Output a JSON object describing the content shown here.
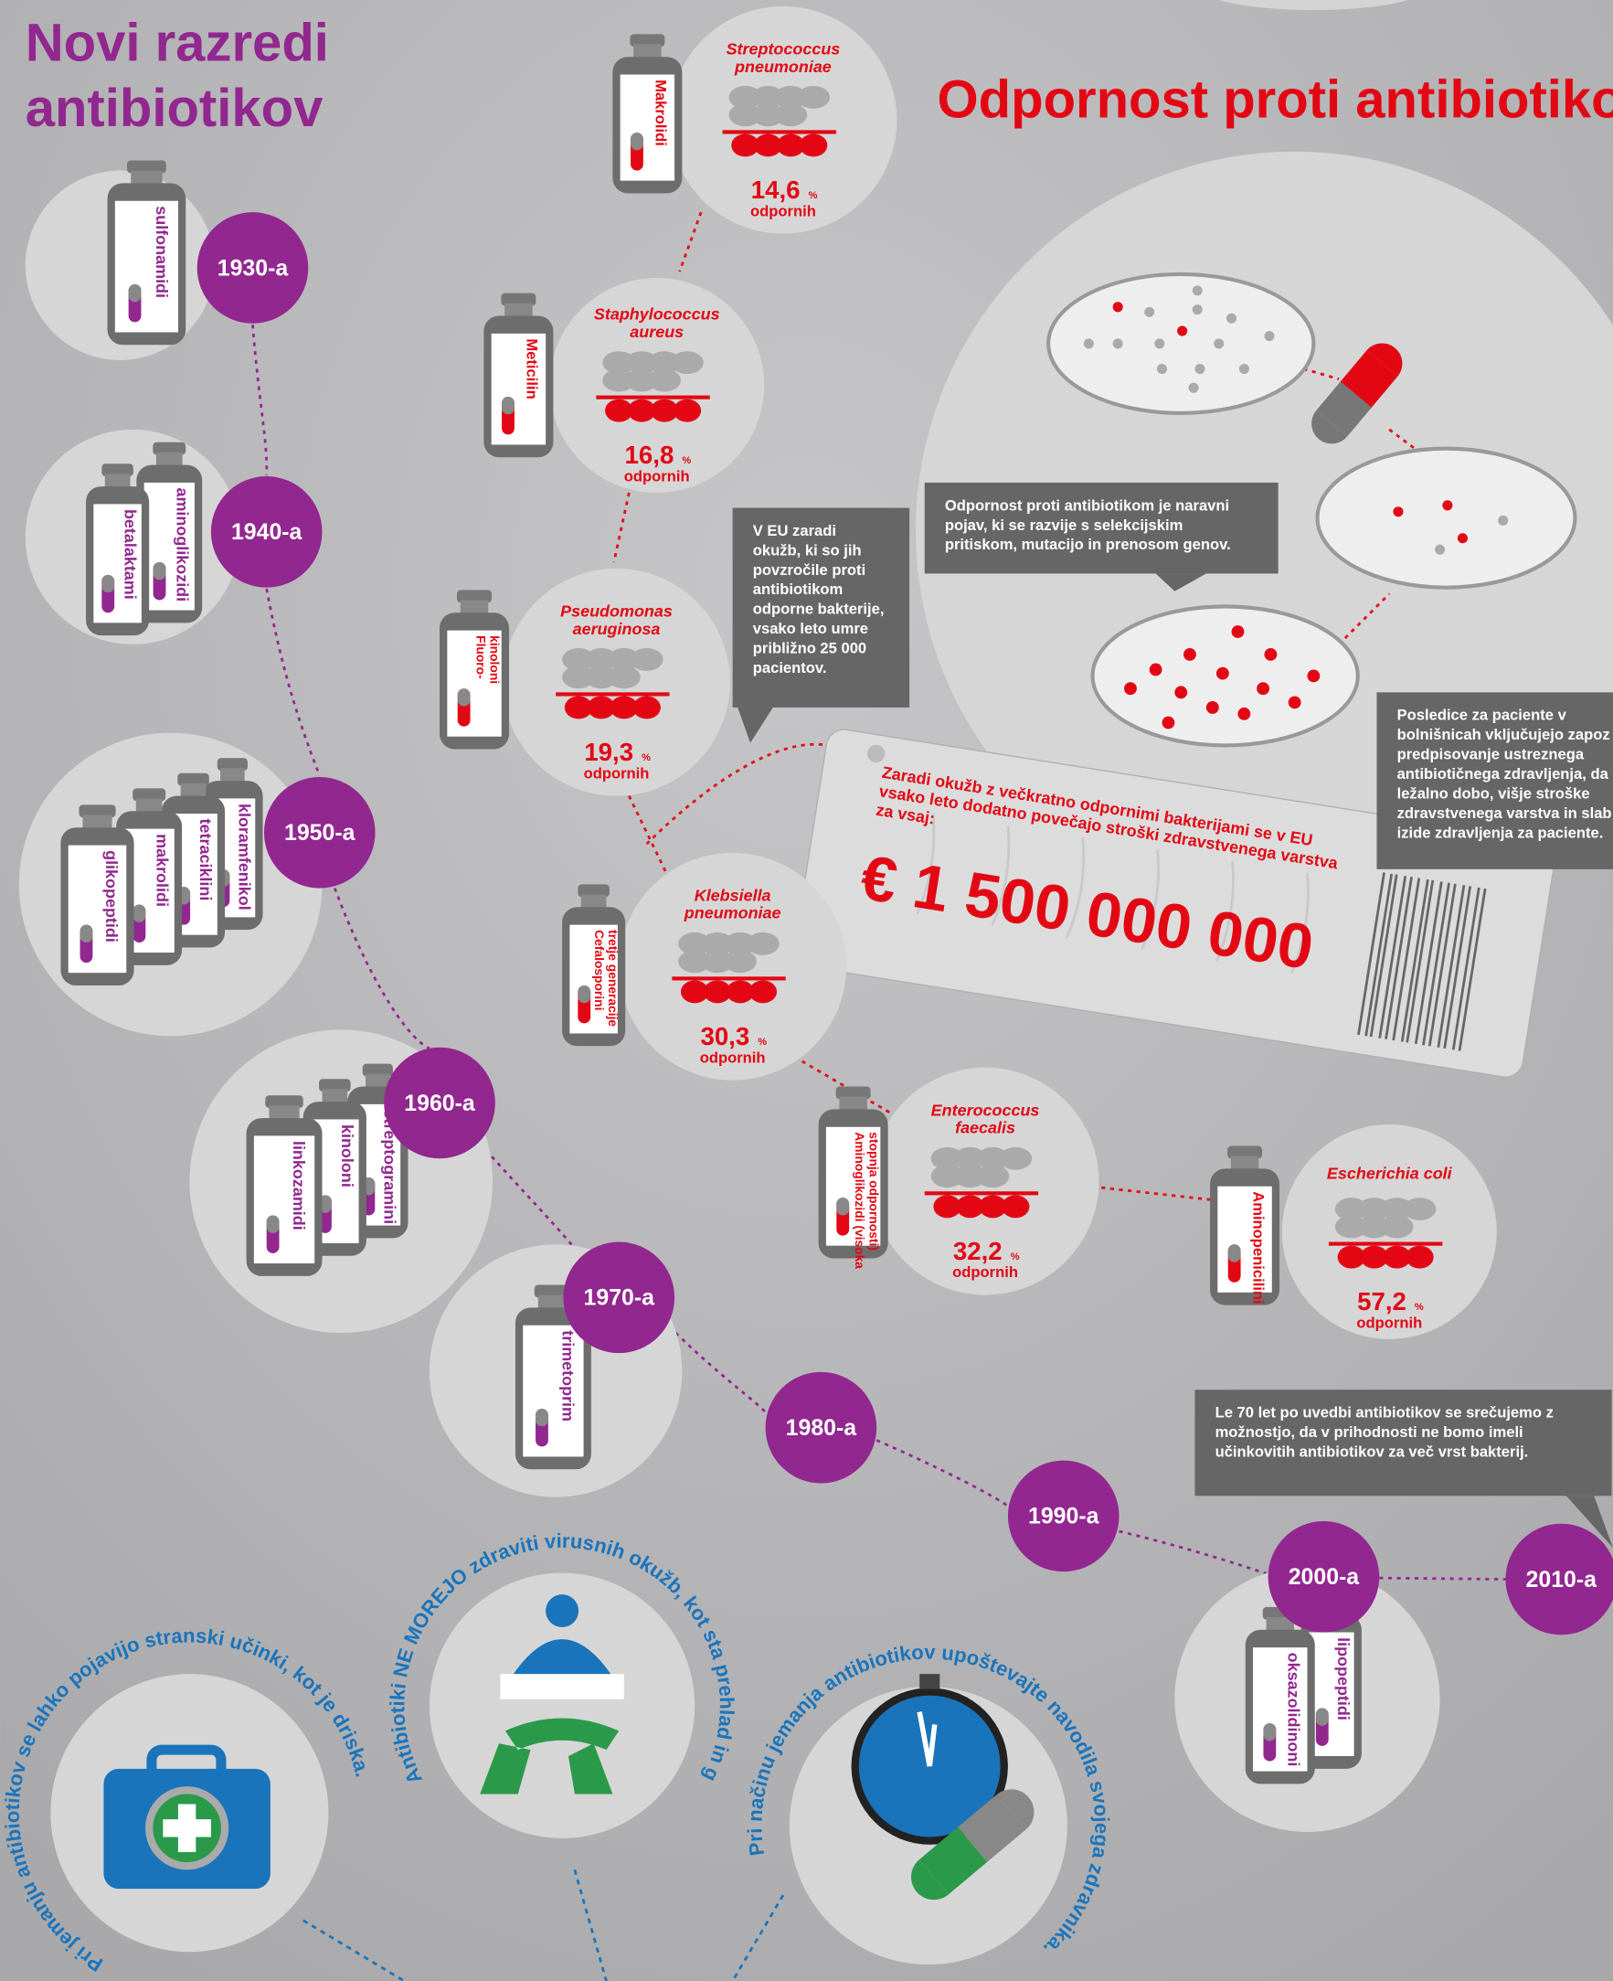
{
  "left_title": [
    "Novi razredi",
    "antibiotikov"
  ],
  "right_title": "Odpornost proti antibiotiko",
  "decades": [
    {
      "label": "1930-a",
      "drugs": [
        "sulfonamidi"
      ]
    },
    {
      "label": "1940-a",
      "drugs": [
        "betalaktami",
        "aminoglikozidi"
      ]
    },
    {
      "label": "1950-a",
      "drugs": [
        "glikopeptidi",
        "makrolidi",
        "tetraciklini",
        "kloramfenikol"
      ]
    },
    {
      "label": "1960-a",
      "drugs": [
        "linkozamidi",
        "kinoloni",
        "streptogramini"
      ]
    },
    {
      "label": "1970-a",
      "drugs": [
        "trimetoprim"
      ]
    },
    {
      "label": "1980-a"
    },
    {
      "label": "1990-a"
    },
    {
      "label": "2000-a",
      "drugs": [
        "oksazolidinoni",
        "lipopeptidi"
      ]
    },
    {
      "label": "2010-a"
    }
  ],
  "bacteria": [
    {
      "name": [
        "Streptococcus",
        "pneumoniae"
      ],
      "drug": [
        "Makrolidi"
      ],
      "percent": "14,6",
      "unit": "%",
      "caption": "odpornih"
    },
    {
      "name": [
        "Staphylococcus",
        "aureus"
      ],
      "drug": [
        "Meticilin"
      ],
      "percent": "16,8",
      "unit": "%",
      "caption": "odpornih"
    },
    {
      "name": [
        "Pseudomonas",
        "aeruginosa"
      ],
      "drug": [
        "Fluoro-",
        "kinoloni"
      ],
      "percent": "19,3",
      "unit": "%",
      "caption": "odpornih"
    },
    {
      "name": [
        "Klebsiella",
        "pneumoniae"
      ],
      "drug": [
        "Cefalosporini",
        "tretje generacije"
      ],
      "percent": "30,3",
      "unit": "%",
      "caption": "odpornih"
    },
    {
      "name": [
        "Enterococcus",
        "faecalis"
      ],
      "drug": [
        "Aminoglikozidi (visoka",
        "stopnja odpornosti)"
      ],
      "percent": "32,2",
      "unit": "%",
      "caption": "odpornih"
    },
    {
      "name": [
        "Escherichia coli"
      ],
      "drug": [
        "Aminopenicilini"
      ],
      "percent": "57,2",
      "unit": "%",
      "caption": "odpornih"
    }
  ],
  "callouts": [
    [
      "V EU zaradi",
      "okužb, ki so jih",
      "povzročile proti",
      "antibiotikom",
      "odporne bakterije,",
      "vsako leto umre",
      "približno 25 000",
      "pacientov."
    ],
    [
      "Odpornost proti antibiotikom je naravni",
      "pojav, ki se razvije s selekcijskim",
      "pritiskom, mutacijo in prenosom genov."
    ],
    [
      "Posledice za paciente v",
      "bolnišnicah vključujejo zapoz",
      "predpisovanje ustreznega",
      "antibiotičnega zdravljenja, da",
      "ležalno dobo, višje stroške",
      "zdravstvenega varstva in slab",
      "izide zdravljenja za paciente."
    ],
    [
      "Le 70 let po uvedbi antibiotikov se srečujemo z",
      "možnostjo, da v prihodnosti ne bomo imeli",
      "učinkovitih antibiotikov za več vrst bakterij."
    ]
  ],
  "price_tag": {
    "text": [
      "Zaradi okužb z večkratno odpornimi bakterijami se v EU",
      "vsako leto dodatno povečajo stroški zdravstvenega varstva",
      "za vsaj:"
    ],
    "amount": "€ 1 500 000 000"
  },
  "tips": [
    "Pri jemanju antibiotikov se lahko pojavijo stranski učinki, kot je driska.",
    "Antibiotiki NE MOREJO zdraviti virusnih okužb, kot sta prehlad in gripa.",
    "Pri načinu jemanja antibiotikov upoštevajte navodila svojega zdravnika."
  ]
}
